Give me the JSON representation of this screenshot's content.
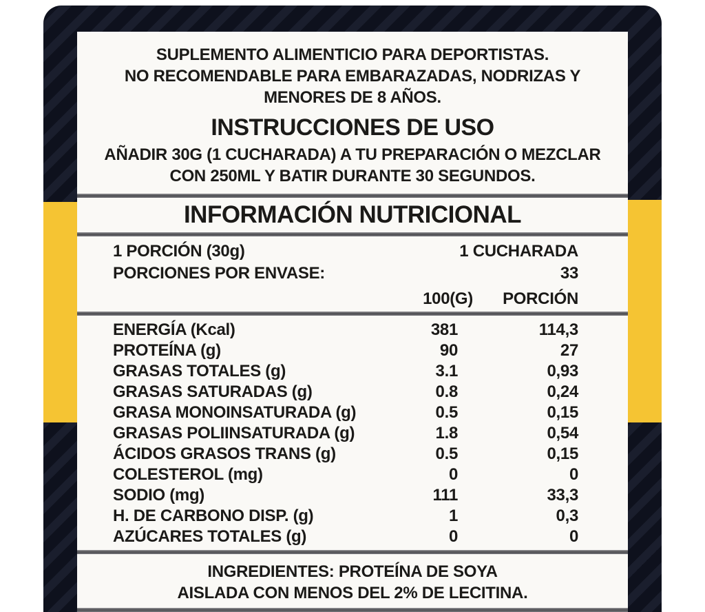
{
  "colors": {
    "accent_yellow": "#F5C433",
    "panel_dark": "#0E111D",
    "panel_stripe": "#1A1E2D",
    "label_background": "#FAF9F6",
    "text": "#1B1A18",
    "divider_gray": "#55565A"
  },
  "warning": {
    "lines": [
      "SUPLEMENTO ALIMENTICIO PARA DEPORTISTAS.",
      "NO RECOMENDABLE PARA EMBARAZADAS, NODRIZAS Y",
      "MENORES DE 8 AÑOS."
    ]
  },
  "instructions": {
    "title": "INSTRUCCIONES DE USO",
    "lines": [
      "AÑADIR 30G (1 CUCHARADA) A TU PREPARACIÓN O MEZCLAR",
      "CON 250ML Y BATIR DURANTE 30 SEGUNDOS."
    ]
  },
  "nutrition": {
    "title": "INFORMACIÓN NUTRICIONAL",
    "serving_rows": [
      {
        "label": "1 PORCIÓN (30g)",
        "value": "1 CUCHARADA"
      },
      {
        "label": "PORCIONES POR ENVASE:",
        "value": "33"
      }
    ],
    "column_headers": {
      "per100": "100(G)",
      "portion": "PORCIÓN"
    },
    "rows": [
      {
        "name": "ENERGÍA (Kcal)",
        "per100": "381",
        "portion": "114,3"
      },
      {
        "name": "PROTEÍNA (g)",
        "per100": "90",
        "portion": "27"
      },
      {
        "name": "GRASAS TOTALES (g)",
        "per100": "3.1",
        "portion": "0,93"
      },
      {
        "name": "GRASAS SATURADAS (g)",
        "per100": "0.8",
        "portion": "0,24"
      },
      {
        "name": "GRASA MONOINSATURADA (g)",
        "per100": "0.5",
        "portion": "0,15"
      },
      {
        "name": "GRASAS POLIINSATURADA (g)",
        "per100": "1.8",
        "portion": "0,54"
      },
      {
        "name": "ÁCIDOS GRASOS TRANS (g)",
        "per100": "0.5",
        "portion": "0,15"
      },
      {
        "name": "COLESTEROL (mg)",
        "per100": "0",
        "portion": "0"
      },
      {
        "name": "SODIO (mg)",
        "per100": "111",
        "portion": "33,3"
      },
      {
        "name": "H. DE CARBONO DISP. (g)",
        "per100": "1",
        "portion": "0,3"
      },
      {
        "name": "AZÚCARES TOTALES (g)",
        "per100": "0",
        "portion": "0"
      }
    ]
  },
  "ingredients": {
    "lines": [
      "INGREDIENTES: PROTEÍNA DE SOYA",
      "AISLADA CON MENOS DEL 2% DE LECITINA."
    ]
  }
}
